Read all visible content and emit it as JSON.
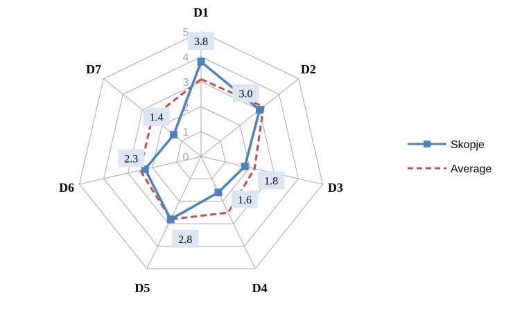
{
  "chart_data": {
    "type": "radar",
    "axes": [
      "D1",
      "D2",
      "D3",
      "D4",
      "D5",
      "D6",
      "D7"
    ],
    "ticks": [
      "0",
      "1",
      "2",
      "3",
      "4",
      "5"
    ],
    "range": [
      0,
      5
    ],
    "gridlines": true,
    "legend_position": "right",
    "series": [
      {
        "name": "Skopje",
        "values": [
          3.8,
          3.0,
          1.8,
          1.6,
          2.8,
          2.3,
          1.4
        ],
        "labels": [
          "3.8",
          "3.0",
          "1.8",
          "1.6",
          "2.8",
          "2.3",
          "1.4"
        ],
        "color": "#4f81bd",
        "line_style": "solid",
        "marker": "square"
      },
      {
        "name": "Average",
        "values": [
          3.1,
          3.2,
          2.2,
          2.5,
          2.8,
          2.5,
          2.5
        ],
        "color": "#c0504d",
        "line_style": "dashed"
      }
    ],
    "data_label_background": "#dce6f2",
    "grid_color": "#a6a6a6"
  }
}
